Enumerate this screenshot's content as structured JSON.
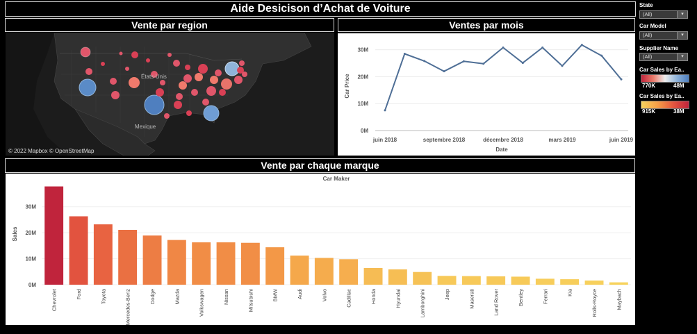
{
  "dashboard_title": "Aide Desicison d’Achat  de Voiture",
  "map_panel": {
    "title": "Vente par region",
    "labels": {
      "usa": "États-Unis",
      "mexico": "Mexique"
    },
    "attribution": "© 2022 Mapbox © OpenStreetMap"
  },
  "line_panel": {
    "title": "Ventes par mois"
  },
  "bar_panel": {
    "title": "Vente par chaque marque"
  },
  "filters": [
    {
      "label": "State",
      "value": "(All)"
    },
    {
      "label": "Car Model",
      "value": "(All)"
    },
    {
      "label": "Supplier Name",
      "value": "(All)"
    }
  ],
  "legends": [
    {
      "title": "Car Sales by Ea..",
      "min": "770K",
      "max": "48M",
      "colors": [
        "#c0243c",
        "#e87a6a",
        "#ececec",
        "#8fb3d9",
        "#4f7fbf"
      ]
    },
    {
      "title": "Car Sales by Ea..",
      "min": "915K",
      "max": "38M",
      "colors": [
        "#f7d35d",
        "#f5a048",
        "#e5573f",
        "#c0243c"
      ]
    }
  ],
  "chart_data": [
    {
      "type": "line",
      "xlabel": "Date",
      "ylabel": "Car Price",
      "x": [
        "juin 2018",
        "juil. 2018",
        "août 2018",
        "septembre 2018",
        "oct. 2018",
        "nov. 2018",
        "décembre 2018",
        "janv. 2019",
        "févr. 2019",
        "mars 2019",
        "avr. 2019",
        "mai 2019",
        "juin 2019"
      ],
      "x_tick_labels": [
        "juin 2018",
        "septembre 2018",
        "décembre 2018",
        "mars 2019",
        "juin 2019"
      ],
      "values": [
        7500000,
        28500000,
        25800000,
        22000000,
        25700000,
        24800000,
        30800000,
        25100000,
        30800000,
        24000000,
        31800000,
        27800000,
        19000000
      ],
      "y_ticks": [
        "0M",
        "10M",
        "20M",
        "30M"
      ],
      "ylim": [
        0,
        33000000
      ],
      "color": "#4f6f96"
    },
    {
      "type": "bar",
      "title": "Car Maker",
      "ylabel": "Sales",
      "categories": [
        "Chevrolet",
        "Ford",
        "Toyota",
        "Mercedes-Benz",
        "Dodge",
        "Mazda",
        "Volkswagen",
        "Nissan",
        "Mitsubishi",
        "BMW",
        "Audi",
        "Volvo",
        "Cadillac",
        "Honda",
        "Hyundai",
        "Lamborghini",
        "Jeep",
        "Maserati",
        "Land Rover",
        "Bentley",
        "Ferrari",
        "Kia",
        "Rolls-Royce",
        "Maybach"
      ],
      "values": [
        37800000,
        26300000,
        23200000,
        21100000,
        18900000,
        17200000,
        16300000,
        16300000,
        16100000,
        14400000,
        11200000,
        10300000,
        9800000,
        6400000,
        5900000,
        4900000,
        3400000,
        3300000,
        3200000,
        3100000,
        2300000,
        2100000,
        1600000,
        900000
      ],
      "y_ticks": [
        "0M",
        "10M",
        "20M",
        "30M"
      ],
      "ylim": [
        0,
        39000000
      ]
    }
  ]
}
